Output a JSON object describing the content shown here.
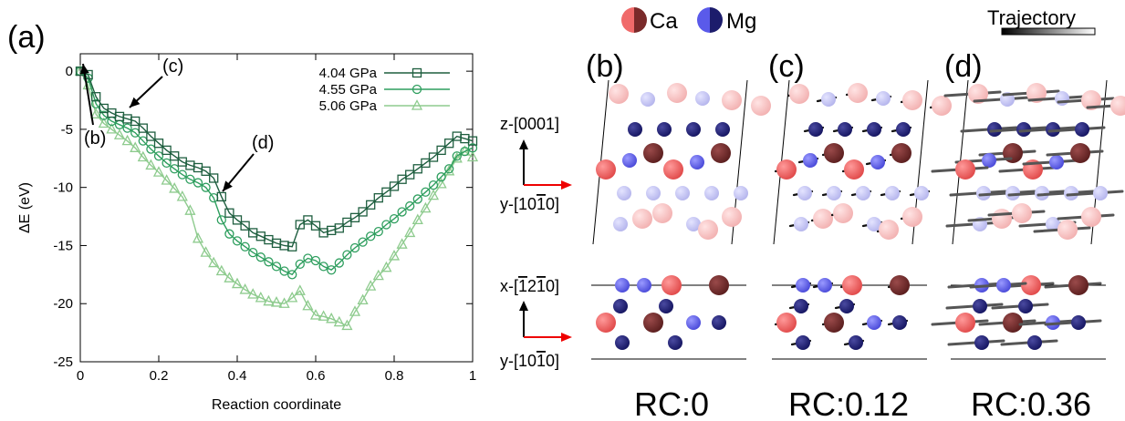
{
  "chart_data": {
    "type": "line",
    "panel_label": "(a)",
    "xlabel": "Reaction coordinate",
    "ylabel": "ΔE (eV)",
    "xlim": [
      0,
      1
    ],
    "ylim": [
      -25,
      1.5
    ],
    "xticks": [
      "0",
      "0.2",
      "0.4",
      "0.6",
      "0.8",
      "1"
    ],
    "xtick_values": [
      0,
      0.2,
      0.4,
      0.6,
      0.8,
      1
    ],
    "yticks": [
      "0",
      "-5",
      "-10",
      "-15",
      "-20",
      "-25"
    ],
    "ytick_values": [
      0,
      -5,
      -10,
      -15,
      -20,
      -25
    ],
    "legend_position": "top-right",
    "grid": false,
    "series": [
      {
        "name": "4.04 GPa",
        "color": "#1e5e3f",
        "marker": "square",
        "x": [
          0.0,
          0.02,
          0.04,
          0.06,
          0.08,
          0.1,
          0.12,
          0.14,
          0.16,
          0.18,
          0.2,
          0.22,
          0.24,
          0.26,
          0.28,
          0.3,
          0.32,
          0.34,
          0.36,
          0.38,
          0.4,
          0.42,
          0.44,
          0.46,
          0.48,
          0.5,
          0.52,
          0.54,
          0.56,
          0.58,
          0.6,
          0.62,
          0.64,
          0.66,
          0.68,
          0.7,
          0.72,
          0.74,
          0.76,
          0.78,
          0.8,
          0.82,
          0.84,
          0.86,
          0.88,
          0.9,
          0.92,
          0.94,
          0.96,
          0.98,
          1.0
        ],
        "y": [
          0,
          -0.3,
          -2.2,
          -3.2,
          -3.6,
          -3.9,
          -4.1,
          -4.3,
          -4.9,
          -5.6,
          -6.2,
          -6.8,
          -7.3,
          -7.8,
          -8.1,
          -8.3,
          -8.6,
          -9.2,
          -10.8,
          -12.2,
          -12.8,
          -13.3,
          -13.9,
          -14.2,
          -14.5,
          -14.8,
          -15.0,
          -15.1,
          -13.2,
          -12.8,
          -13.3,
          -13.9,
          -13.7,
          -13.5,
          -13.0,
          -12.6,
          -12.1,
          -11.5,
          -10.9,
          -10.4,
          -9.9,
          -9.3,
          -8.9,
          -8.4,
          -7.9,
          -7.4,
          -6.8,
          -6.2,
          -5.6,
          -5.8,
          -6.0
        ]
      },
      {
        "name": "4.55 GPa",
        "color": "#2e9e5e",
        "marker": "circle",
        "x": [
          0.0,
          0.02,
          0.04,
          0.06,
          0.08,
          0.1,
          0.12,
          0.14,
          0.16,
          0.18,
          0.2,
          0.22,
          0.24,
          0.26,
          0.28,
          0.3,
          0.32,
          0.34,
          0.36,
          0.38,
          0.4,
          0.42,
          0.44,
          0.46,
          0.48,
          0.5,
          0.52,
          0.54,
          0.56,
          0.58,
          0.6,
          0.62,
          0.64,
          0.66,
          0.68,
          0.7,
          0.72,
          0.74,
          0.76,
          0.78,
          0.8,
          0.82,
          0.84,
          0.86,
          0.88,
          0.9,
          0.92,
          0.94,
          0.96,
          0.98,
          1.0
        ],
        "y": [
          0,
          -0.6,
          -2.8,
          -3.8,
          -4.3,
          -4.6,
          -4.9,
          -5.3,
          -6.0,
          -6.7,
          -7.3,
          -7.9,
          -8.4,
          -8.9,
          -9.3,
          -9.6,
          -10.0,
          -10.9,
          -12.8,
          -14.0,
          -14.6,
          -15.1,
          -15.6,
          -16.0,
          -16.4,
          -16.8,
          -17.2,
          -17.5,
          -16.6,
          -16.1,
          -16.3,
          -16.8,
          -17.1,
          -16.5,
          -15.8,
          -15.2,
          -14.7,
          -14.2,
          -13.8,
          -13.2,
          -12.7,
          -12.1,
          -11.6,
          -11.0,
          -10.4,
          -9.8,
          -9.1,
          -8.4,
          -7.3,
          -6.9,
          -6.6
        ]
      },
      {
        "name": "5.06 GPa",
        "color": "#8ecb8e",
        "marker": "triangle",
        "x": [
          0.0,
          0.02,
          0.04,
          0.06,
          0.08,
          0.1,
          0.12,
          0.14,
          0.16,
          0.18,
          0.2,
          0.22,
          0.24,
          0.26,
          0.28,
          0.3,
          0.32,
          0.34,
          0.36,
          0.38,
          0.4,
          0.42,
          0.44,
          0.46,
          0.48,
          0.5,
          0.52,
          0.54,
          0.56,
          0.58,
          0.6,
          0.62,
          0.64,
          0.66,
          0.68,
          0.7,
          0.72,
          0.74,
          0.76,
          0.78,
          0.8,
          0.82,
          0.84,
          0.86,
          0.88,
          0.9,
          0.92,
          0.94,
          0.96,
          0.98,
          1.0
        ],
        "y": [
          0,
          -1.2,
          -3.7,
          -4.5,
          -5.0,
          -5.5,
          -6.0,
          -6.6,
          -7.4,
          -8.1,
          -8.7,
          -9.4,
          -10.1,
          -10.8,
          -12.0,
          -14.4,
          -15.6,
          -16.5,
          -17.2,
          -17.8,
          -18.3,
          -18.8,
          -19.2,
          -19.5,
          -19.8,
          -19.9,
          -20.0,
          -19.5,
          -18.9,
          -20.2,
          -21.0,
          -21.1,
          -21.3,
          -21.6,
          -21.9,
          -20.7,
          -19.7,
          -18.5,
          -17.6,
          -16.9,
          -15.9,
          -14.9,
          -13.9,
          -12.8,
          -11.8,
          -10.7,
          -9.7,
          -8.6,
          -7.5,
          -6.9,
          -7.4
        ]
      }
    ],
    "annotations": [
      {
        "label": "(b)",
        "x": 0.0,
        "y": 0.0
      },
      {
        "label": "(c)",
        "x": 0.12,
        "y": -4.1
      },
      {
        "label": "(d)",
        "x": 0.36,
        "y": -10.8
      }
    ]
  },
  "legend_atoms": {
    "ca_label": "Ca",
    "mg_label": "Mg",
    "ca_color": "#f06a6a",
    "ca_dark": "#6e2828",
    "mg_color": "#6060e6",
    "mg_dark": "#1c1c6c",
    "trajectory_label": "Trajectory"
  },
  "structures": {
    "axes": {
      "z_label": "z-[0001]",
      "y_label_top": "y-[10",
      "y_label_bottom": "y-[10",
      "x_label": "x-["
    },
    "panels": [
      {
        "label": "(b)",
        "rc": "RC:0",
        "trajectory": "none"
      },
      {
        "label": "(c)",
        "rc": "RC:0.12",
        "trajectory": "short"
      },
      {
        "label": "(d)",
        "rc": "RC:0.36",
        "trajectory": "long"
      }
    ]
  }
}
